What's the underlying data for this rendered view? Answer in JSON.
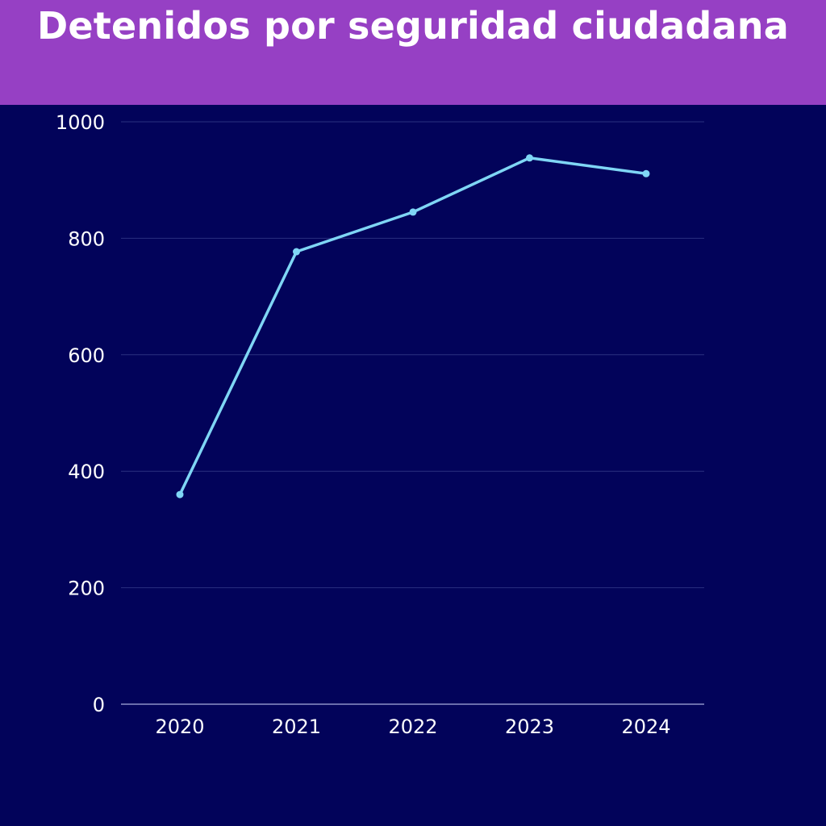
{
  "header": {
    "title": "Detenidos por seguridad ciudadana"
  },
  "colors": {
    "background": "#02035a",
    "banner": "#9640c4",
    "line": "#7fd6f5",
    "grid": "#2a3180",
    "text": "#ffffff"
  },
  "chart_data": {
    "type": "line",
    "title": "Detenidos por seguridad ciudadana",
    "xlabel": "",
    "ylabel": "",
    "categories": [
      "2020",
      "2021",
      "2022",
      "2023",
      "2024"
    ],
    "series": [
      {
        "values": [
          360,
          777,
          845,
          938,
          911
        ]
      }
    ],
    "ylim": [
      0,
      1000
    ],
    "yticks": [
      0,
      200,
      400,
      600,
      800,
      1000
    ],
    "grid": "horizontal",
    "legend": "none"
  }
}
